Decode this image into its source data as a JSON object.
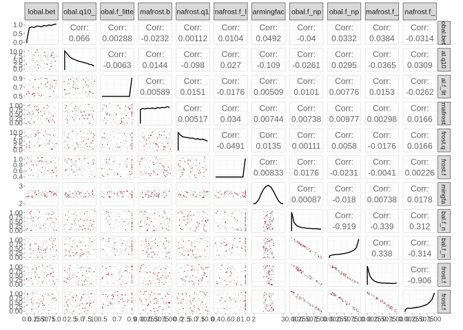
{
  "chart_data": {
    "type": "scatter",
    "variables": [
      {
        "label": "lobal.bet",
        "ticks": [
          "1.0",
          "0.5",
          "0.0"
        ],
        "xticks": [
          "0.0",
          "0.25",
          "0.50",
          "0.75",
          "1.0"
        ],
        "range": [
          0,
          1.2
        ]
      },
      {
        "label": "obal.q10_",
        "ticks": [
          "10.0",
          "7.5",
          "5.0",
          "2.5",
          "0.0"
        ],
        "xticks": [
          "0",
          "2.5",
          "5.0",
          "7.5",
          "10"
        ],
        "range": [
          0,
          10
        ]
      },
      {
        "label": "obal.f_litte",
        "ticks": [
          "0.9",
          "0.7",
          "0.5"
        ],
        "xticks": [
          "0.5",
          "0.7",
          "0.9"
        ],
        "range": [
          0.4,
          1
        ]
      },
      {
        "label": "mafrost.b",
        "ticks": [
          "1.00",
          "0.75",
          "0.50",
          "0.25",
          "0.00"
        ],
        "xticks": [
          "0.00",
          "0.25",
          "0.50",
          "0.75",
          "1.00"
        ],
        "range": [
          0,
          1
        ]
      },
      {
        "label": "nafrost.q1",
        "ticks": [
          "10.0",
          "7.5",
          "5.0",
          "2.5",
          "0.0"
        ],
        "xticks": [
          "0.0",
          "2.5",
          "5.0",
          "7.5",
          "10.0"
        ],
        "range": [
          0,
          10
        ]
      },
      {
        "label": "nafrost.f_l",
        "ticks": [
          "1.0",
          "0.8",
          "0.6",
          "0.4"
        ],
        "xticks": [
          "0.4",
          "0.6",
          "0.8",
          "1.0"
        ],
        "range": [
          0.3,
          1
        ]
      },
      {
        "label": "armingfac",
        "ticks": [
          "3",
          "2"
        ],
        "xticks": [
          "2",
          "3"
        ],
        "range": [
          1.3,
          3.7
        ]
      },
      {
        "label": "obal.f_np",
        "ticks": [
          "1.00",
          "0.75",
          "0.50",
          "0.25",
          "0.00"
        ],
        "xticks": [
          "0.00",
          "0.25",
          "0.50",
          "0.75",
          "1.00"
        ],
        "range": [
          0,
          1
        ]
      },
      {
        "label": "obal.f_np",
        "ticks": [
          "1.00",
          "0.75",
          "0.50",
          "0.25",
          "0.00"
        ],
        "xticks": [
          "0.00",
          "0.25",
          "0.50",
          "0.75",
          "1.00"
        ],
        "range": [
          0,
          1
        ]
      },
      {
        "label": "mafrost.f_",
        "ticks": [
          "1.00",
          "0.75",
          "0.50",
          "0.25",
          "0.00"
        ],
        "xticks": [
          "0.00",
          "0.25",
          "0.50",
          "0.75",
          "1.00"
        ],
        "range": [
          0,
          1
        ]
      },
      {
        "label": "nafrost.f_",
        "ticks": [
          "1.00",
          "0.75",
          "0.50",
          "0.25",
          "0.00"
        ],
        "xticks": [
          "0.00",
          "0.25",
          "0.50",
          "0.75",
          "1.00"
        ],
        "range": [
          0,
          1
        ]
      }
    ],
    "row_strip_labels": [
      "obal.bet",
      "al.q10",
      "al.f_lit",
      "mafrost",
      "frost.q",
      "frost.f",
      "mingfa",
      "bal.f_n",
      "bal.f_n",
      "frost.f",
      "frost.f"
    ],
    "bottom_tick_text": "0.0025.5075.0 0.2.5.7.5.0 0.5 0.7 0.9 0.0025.5075.0 0.2.5.7.5.0 0.4 0.6 0.8 1   2   3   0.0025.5075.000.0025.5075.000.0025.5075.000.0025.5075.00",
    "corr_label": "Corr:",
    "correlations": [
      [
        1,
        2,
        "0.066"
      ],
      [
        1,
        3,
        "0.00288"
      ],
      [
        1,
        4,
        "-0.0232"
      ],
      [
        1,
        5,
        "0.00112"
      ],
      [
        1,
        6,
        "0.0104"
      ],
      [
        1,
        7,
        "0.0492"
      ],
      [
        1,
        8,
        "-0.04"
      ],
      [
        1,
        9,
        "0.0332"
      ],
      [
        1,
        10,
        "0.0384"
      ],
      [
        1,
        11,
        "-0.0314"
      ],
      [
        2,
        3,
        "-0.0063"
      ],
      [
        2,
        4,
        "0.0144"
      ],
      [
        2,
        5,
        "-0.098"
      ],
      [
        2,
        6,
        "0.027"
      ],
      [
        2,
        7,
        "-0.109"
      ],
      [
        2,
        8,
        "-0.0261"
      ],
      [
        2,
        9,
        "0.0295"
      ],
      [
        2,
        10,
        "-0.0365"
      ],
      [
        2,
        11,
        "0.0309"
      ],
      [
        3,
        4,
        "0.00589"
      ],
      [
        3,
        5,
        "0.0151"
      ],
      [
        3,
        6,
        "-0.0176"
      ],
      [
        3,
        7,
        "0.00509"
      ],
      [
        3,
        8,
        "0.0101"
      ],
      [
        3,
        9,
        "0.00776"
      ],
      [
        3,
        10,
        "0.0153"
      ],
      [
        3,
        11,
        "-0.0262"
      ],
      [
        4,
        5,
        "0.00517"
      ],
      [
        4,
        6,
        "0.034"
      ],
      [
        4,
        7,
        "0.00744"
      ],
      [
        4,
        8,
        "0.00738"
      ],
      [
        4,
        9,
        "0.00977"
      ],
      [
        4,
        10,
        "0.00298"
      ],
      [
        4,
        11,
        "0.0166"
      ],
      [
        5,
        6,
        "-0.0491"
      ],
      [
        5,
        7,
        "0.0135"
      ],
      [
        5,
        8,
        "0.00111"
      ],
      [
        5,
        9,
        "0.0058"
      ],
      [
        5,
        10,
        "-0.0176"
      ],
      [
        5,
        11,
        "0.0166"
      ],
      [
        6,
        7,
        "0.00833"
      ],
      [
        6,
        8,
        "0.0176"
      ],
      [
        6,
        9,
        "-0.0231"
      ],
      [
        6,
        10,
        "-0.0041"
      ],
      [
        6,
        11,
        "0.00226"
      ],
      [
        7,
        8,
        "0.00087"
      ],
      [
        7,
        9,
        "-0.018"
      ],
      [
        7,
        10,
        "0.00738"
      ],
      [
        7,
        11,
        "0.0178"
      ],
      [
        8,
        9,
        "-0.919"
      ],
      [
        8,
        10,
        "-0.339"
      ],
      [
        8,
        11,
        "0.312"
      ],
      [
        9,
        10,
        "0.338"
      ],
      [
        9,
        11,
        "-0.314"
      ],
      [
        10,
        11,
        "-0.906"
      ]
    ],
    "densities": [
      [
        0.15,
        0.8,
        0.85,
        0.82,
        0.9,
        0.88,
        0.86,
        0.92,
        0.9,
        0.95,
        0.93,
        0.98,
        1.0
      ],
      [
        1.0,
        0.85,
        0.7,
        0.6,
        0.55,
        0.5,
        0.45,
        0.42,
        0.38,
        0.35,
        0.3,
        0.28,
        0.2
      ],
      [
        0.02,
        0.02,
        0.02,
        0.02,
        0.02,
        0.02,
        0.02,
        0.02,
        0.02,
        0.02,
        0.02,
        0.02,
        1.0
      ],
      [
        0.75,
        0.8,
        0.78,
        0.82,
        0.8,
        0.83,
        0.79,
        0.85,
        0.82,
        0.86,
        0.84,
        0.9,
        0.85
      ],
      [
        0.95,
        0.8,
        0.72,
        0.7,
        0.68,
        0.65,
        0.66,
        0.6,
        0.62,
        0.58,
        0.6,
        0.55,
        0.5
      ],
      [
        0.02,
        0.02,
        0.02,
        0.02,
        0.02,
        0.02,
        0.02,
        0.02,
        0.02,
        0.02,
        0.02,
        0.02,
        1.0
      ],
      [
        0.02,
        0.08,
        0.25,
        0.55,
        0.8,
        0.95,
        1.0,
        0.9,
        0.7,
        0.45,
        0.2,
        0.06,
        0.02
      ],
      [
        1.0,
        0.45,
        0.3,
        0.24,
        0.2,
        0.18,
        0.16,
        0.15,
        0.14,
        0.13,
        0.13,
        0.12,
        0.1
      ],
      [
        0.12,
        0.16,
        0.18,
        0.19,
        0.2,
        0.22,
        0.24,
        0.27,
        0.3,
        0.35,
        0.42,
        0.55,
        1.0
      ],
      [
        1.0,
        0.5,
        0.3,
        0.2,
        0.15,
        0.12,
        0.1,
        0.1,
        0.09,
        0.09,
        0.08,
        0.08,
        0.1
      ],
      [
        0.1,
        0.2,
        0.18,
        0.2,
        0.22,
        0.24,
        0.26,
        0.3,
        0.34,
        0.4,
        0.5,
        0.65,
        1.0
      ]
    ],
    "colors": {
      "strip_fill": "#d9d9d9",
      "strip_border": "#333333",
      "grid": "#ebebeb",
      "corr_text": "#666666",
      "axis_text": "#4d4d4d",
      "point_grey": "#bdbdbd",
      "point_red": "#b2182b",
      "density_line": "#000000"
    }
  }
}
